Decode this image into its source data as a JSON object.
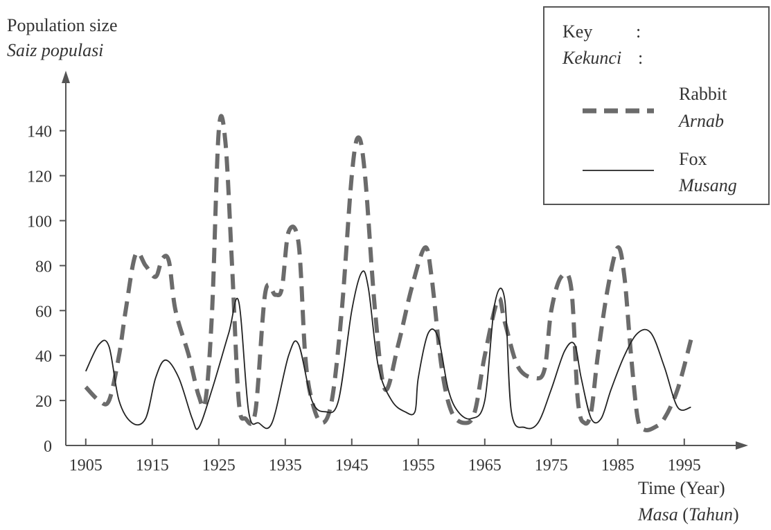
{
  "chart_data": {
    "type": "line",
    "ylabel": {
      "en": "Population size",
      "my": "Saiz populasi"
    },
    "xlabel": {
      "en": "Time (Year)",
      "my_a": "Masa",
      "my_b": "Tahun"
    },
    "ylim": [
      0,
      150
    ],
    "xlim": [
      1902,
      2010
    ],
    "yticks": [
      0,
      20,
      40,
      60,
      80,
      100,
      120,
      140
    ],
    "xticks": [
      1905,
      1915,
      1925,
      1935,
      1945,
      1955,
      1965,
      1975,
      1985,
      1995
    ],
    "legend": {
      "title_en": "Key",
      "title_my": "Kekunci",
      "colon": ":",
      "placement": "top-right"
    },
    "series": [
      {
        "name": "Rabbit",
        "name_my": "Arnab",
        "style": "dashed",
        "color": "#6b6b6b",
        "x": [
          1905,
          1907,
          1908.5,
          1910,
          1911,
          1912.5,
          1914,
          1915.5,
          1916.5,
          1917.5,
          1918.5,
          1920.5,
          1922,
          1923,
          1924,
          1925,
          1926,
          1927,
          1928,
          1929,
          1930.5,
          1932,
          1933.5,
          1934.5,
          1935.5,
          1937,
          1938,
          1939,
          1940.5,
          1942,
          1943.5,
          1945,
          1946,
          1947,
          1948.5,
          1950,
          1952,
          1954,
          1956,
          1957,
          1958.5,
          1960,
          1962,
          1963.5,
          1965,
          1967,
          1968,
          1970,
          1972.5,
          1974,
          1975,
          1976.5,
          1978,
          1979,
          1980,
          1981,
          1982,
          1983.5,
          1985,
          1986,
          1987,
          1988,
          1989,
          1990.5,
          1992,
          1994,
          1996
        ],
        "y": [
          26,
          20,
          20,
          40,
          60,
          85,
          80,
          75,
          83,
          82,
          60,
          40,
          22,
          20,
          60,
          140,
          135,
          80,
          20,
          12,
          15,
          68,
          67,
          70,
          95,
          90,
          40,
          20,
          10,
          20,
          60,
          120,
          137,
          120,
          60,
          25,
          45,
          70,
          88,
          75,
          35,
          15,
          10,
          15,
          40,
          65,
          55,
          35,
          30,
          34,
          60,
          75,
          70,
          20,
          10,
          15,
          40,
          70,
          88,
          75,
          40,
          12,
          7,
          8,
          12,
          25,
          47
        ]
      },
      {
        "name": "Fox",
        "name_my": "Musang",
        "style": "solid",
        "color": "#222222",
        "x": [
          1905,
          1907,
          1908.5,
          1910,
          1912,
          1914,
          1915.5,
          1917,
          1919,
          1921,
          1922,
          1924,
          1926.5,
          1928,
          1929.5,
          1931,
          1933,
          1935.5,
          1937,
          1939,
          1941,
          1943,
          1945,
          1946.5,
          1947.5,
          1949,
          1951,
          1953,
          1954.5,
          1955,
          1956.5,
          1958,
          1959.5,
          1961,
          1963,
          1965,
          1966.5,
          1968,
          1969,
          1971,
          1973,
          1975,
          1977,
          1978.5,
          1979.5,
          1981,
          1982.5,
          1984,
          1986,
          1988,
          1990,
          1992,
          1994,
          1996
        ],
        "y": [
          33,
          45,
          44,
          20,
          10,
          12,
          30,
          38,
          30,
          12,
          8,
          25,
          50,
          64,
          15,
          10,
          10,
          40,
          45,
          20,
          15,
          20,
          60,
          77,
          70,
          35,
          20,
          15,
          15,
          30,
          50,
          48,
          25,
          15,
          12,
          20,
          63,
          65,
          15,
          8,
          10,
          25,
          42,
          45,
          30,
          12,
          12,
          25,
          40,
          50,
          50,
          35,
          17,
          17
        ]
      }
    ]
  }
}
